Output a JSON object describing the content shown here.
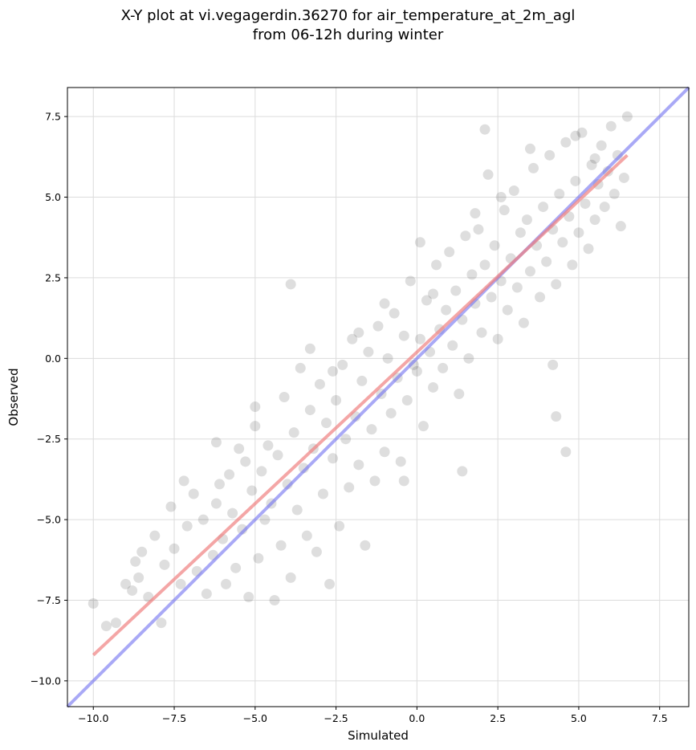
{
  "chart_data": {
    "type": "scatter",
    "title_line1": "X-Y plot at vi.vegagerdin.36270 for air_temperature_at_2m_agl",
    "title_line2": "from 06-12h during winter",
    "xlabel": "Simulated",
    "ylabel": "Observed",
    "xlim": [
      -10.8,
      8.4
    ],
    "ylim": [
      -10.8,
      8.4
    ],
    "xticks": [
      -10.0,
      -7.5,
      -5.0,
      -2.5,
      0.0,
      2.5,
      5.0,
      7.5
    ],
    "yticks": [
      -10.0,
      -7.5,
      -5.0,
      -2.5,
      0.0,
      2.5,
      5.0,
      7.5
    ],
    "xtick_labels": [
      "−10.0",
      "−7.5",
      "−5.0",
      "−2.5",
      "0.0",
      "2.5",
      "5.0",
      "7.5"
    ],
    "ytick_labels": [
      "−10.0",
      "−7.5",
      "−5.0",
      "−2.5",
      "0.0",
      "2.5",
      "5.0",
      "7.5"
    ],
    "grid": true,
    "colors": {
      "points": "#000000",
      "fit_line": "#f08080",
      "identity_line": "#7070f0"
    },
    "fit_line": {
      "x": [
        -10.0,
        6.5
      ],
      "y": [
        -9.2,
        6.3
      ]
    },
    "identity_line": {
      "x": [
        -10.8,
        8.4
      ],
      "y": [
        -10.8,
        8.4
      ]
    },
    "points": [
      [
        -10.0,
        -7.6
      ],
      [
        -9.6,
        -8.3
      ],
      [
        -9.3,
        -8.2
      ],
      [
        -8.8,
        -7.2
      ],
      [
        -8.6,
        -6.8
      ],
      [
        -8.5,
        -6.0
      ],
      [
        -8.3,
        -7.4
      ],
      [
        -8.1,
        -5.5
      ],
      [
        -7.9,
        -8.2
      ],
      [
        -7.8,
        -6.4
      ],
      [
        -7.6,
        -4.6
      ],
      [
        -7.5,
        -5.9
      ],
      [
        -7.3,
        -7.0
      ],
      [
        -7.1,
        -5.2
      ],
      [
        -6.9,
        -4.2
      ],
      [
        -6.8,
        -6.6
      ],
      [
        -6.6,
        -5.0
      ],
      [
        -6.5,
        -7.3
      ],
      [
        -6.3,
        -6.1
      ],
      [
        -6.2,
        -4.5
      ],
      [
        -6.1,
        -3.9
      ],
      [
        -6.0,
        -5.6
      ],
      [
        -5.9,
        -7.0
      ],
      [
        -5.8,
        -3.6
      ],
      [
        -5.7,
        -4.8
      ],
      [
        -5.6,
        -6.5
      ],
      [
        -5.5,
        -2.8
      ],
      [
        -5.4,
        -5.3
      ],
      [
        -5.3,
        -3.2
      ],
      [
        -5.2,
        -7.4
      ],
      [
        -5.1,
        -4.1
      ],
      [
        -5.0,
        -2.1
      ],
      [
        -4.9,
        -6.2
      ],
      [
        -4.8,
        -3.5
      ],
      [
        -4.7,
        -5.0
      ],
      [
        -4.6,
        -2.7
      ],
      [
        -4.5,
        -4.5
      ],
      [
        -4.4,
        -7.5
      ],
      [
        -4.3,
        -3.0
      ],
      [
        -4.2,
        -5.8
      ],
      [
        -4.1,
        -1.2
      ],
      [
        -4.0,
        -3.9
      ],
      [
        -3.9,
        -6.8
      ],
      [
        -3.8,
        -2.3
      ],
      [
        -3.7,
        -4.7
      ],
      [
        -3.6,
        -0.3
      ],
      [
        -3.5,
        -3.4
      ],
      [
        -3.4,
        -5.5
      ],
      [
        -3.3,
        -1.6
      ],
      [
        -3.2,
        -2.8
      ],
      [
        -3.1,
        -6.0
      ],
      [
        -3.0,
        -0.8
      ],
      [
        -2.9,
        -4.2
      ],
      [
        -2.8,
        -2.0
      ],
      [
        -2.7,
        -7.0
      ],
      [
        -2.6,
        -3.1
      ],
      [
        -2.5,
        -1.3
      ],
      [
        -2.4,
        -5.2
      ],
      [
        -2.3,
        -0.2
      ],
      [
        -2.2,
        -2.5
      ],
      [
        -2.1,
        -4.0
      ],
      [
        -2.0,
        0.6
      ],
      [
        -1.9,
        -1.8
      ],
      [
        -1.8,
        -3.3
      ],
      [
        -1.7,
        -0.7
      ],
      [
        -1.6,
        -5.8
      ],
      [
        -1.5,
        0.2
      ],
      [
        -1.4,
        -2.2
      ],
      [
        -1.3,
        -3.8
      ],
      [
        -1.2,
        1.0
      ],
      [
        -1.1,
        -1.1
      ],
      [
        -1.0,
        -2.9
      ],
      [
        -0.9,
        0.0
      ],
      [
        -0.8,
        -1.7
      ],
      [
        -0.7,
        1.4
      ],
      [
        -0.6,
        -0.6
      ],
      [
        -0.5,
        -3.2
      ],
      [
        -0.4,
        0.7
      ],
      [
        -0.3,
        -1.3
      ],
      [
        -0.2,
        2.4
      ],
      [
        -0.1,
        -0.2
      ],
      [
        0.0,
        -0.4
      ],
      [
        0.1,
        0.6
      ],
      [
        0.2,
        -2.1
      ],
      [
        0.3,
        1.8
      ],
      [
        0.4,
        0.2
      ],
      [
        0.5,
        -0.9
      ],
      [
        0.6,
        2.9
      ],
      [
        0.7,
        0.9
      ],
      [
        0.8,
        -0.3
      ],
      [
        0.9,
        1.5
      ],
      [
        1.0,
        3.3
      ],
      [
        1.1,
        0.4
      ],
      [
        1.2,
        2.1
      ],
      [
        1.3,
        -1.1
      ],
      [
        1.4,
        1.2
      ],
      [
        1.5,
        3.8
      ],
      [
        1.6,
        0.0
      ],
      [
        1.7,
        2.6
      ],
      [
        1.8,
        1.7
      ],
      [
        1.9,
        4.0
      ],
      [
        2.0,
        0.8
      ],
      [
        2.1,
        2.9
      ],
      [
        2.2,
        5.7
      ],
      [
        2.3,
        1.9
      ],
      [
        2.4,
        3.5
      ],
      [
        2.5,
        0.6
      ],
      [
        2.6,
        2.4
      ],
      [
        2.7,
        4.6
      ],
      [
        2.8,
        1.5
      ],
      [
        2.9,
        3.1
      ],
      [
        3.0,
        5.2
      ],
      [
        3.1,
        2.2
      ],
      [
        3.2,
        3.9
      ],
      [
        3.3,
        1.1
      ],
      [
        3.4,
        4.3
      ],
      [
        3.5,
        2.7
      ],
      [
        3.6,
        5.9
      ],
      [
        3.7,
        3.5
      ],
      [
        3.8,
        1.9
      ],
      [
        3.9,
        4.7
      ],
      [
        4.0,
        3.0
      ],
      [
        4.1,
        6.3
      ],
      [
        4.2,
        4.0
      ],
      [
        4.3,
        2.3
      ],
      [
        4.4,
        5.1
      ],
      [
        4.5,
        3.6
      ],
      [
        4.6,
        6.7
      ],
      [
        4.7,
        4.4
      ],
      [
        4.8,
        2.9
      ],
      [
        4.9,
        5.5
      ],
      [
        5.0,
        3.9
      ],
      [
        5.1,
        7.0
      ],
      [
        5.2,
        4.8
      ],
      [
        5.3,
        3.4
      ],
      [
        5.4,
        6.0
      ],
      [
        5.5,
        4.3
      ],
      [
        5.6,
        5.4
      ],
      [
        5.7,
        6.6
      ],
      [
        5.8,
        4.7
      ],
      [
        5.9,
        5.8
      ],
      [
        6.0,
        7.2
      ],
      [
        6.1,
        5.1
      ],
      [
        6.2,
        6.3
      ],
      [
        6.3,
        4.1
      ],
      [
        6.4,
        5.6
      ],
      [
        6.5,
        7.5
      ],
      [
        2.1,
        7.1
      ],
      [
        4.3,
        -1.8
      ],
      [
        4.6,
        -2.9
      ],
      [
        4.2,
        -0.2
      ],
      [
        1.4,
        -3.5
      ],
      [
        -3.9,
        2.3
      ],
      [
        -0.4,
        -3.8
      ],
      [
        0.1,
        3.6
      ],
      [
        -6.2,
        -2.6
      ],
      [
        -5.0,
        -1.5
      ],
      [
        -7.2,
        -3.8
      ],
      [
        -8.7,
        -6.3
      ],
      [
        -9.0,
        -7.0
      ],
      [
        -1.0,
        1.7
      ],
      [
        -1.8,
        0.8
      ],
      [
        -2.6,
        -0.4
      ],
      [
        -3.3,
        0.3
      ],
      [
        0.5,
        2.0
      ],
      [
        1.8,
        4.5
      ],
      [
        2.6,
        5.0
      ],
      [
        3.5,
        6.5
      ],
      [
        4.9,
        6.9
      ],
      [
        5.5,
        6.2
      ]
    ]
  }
}
